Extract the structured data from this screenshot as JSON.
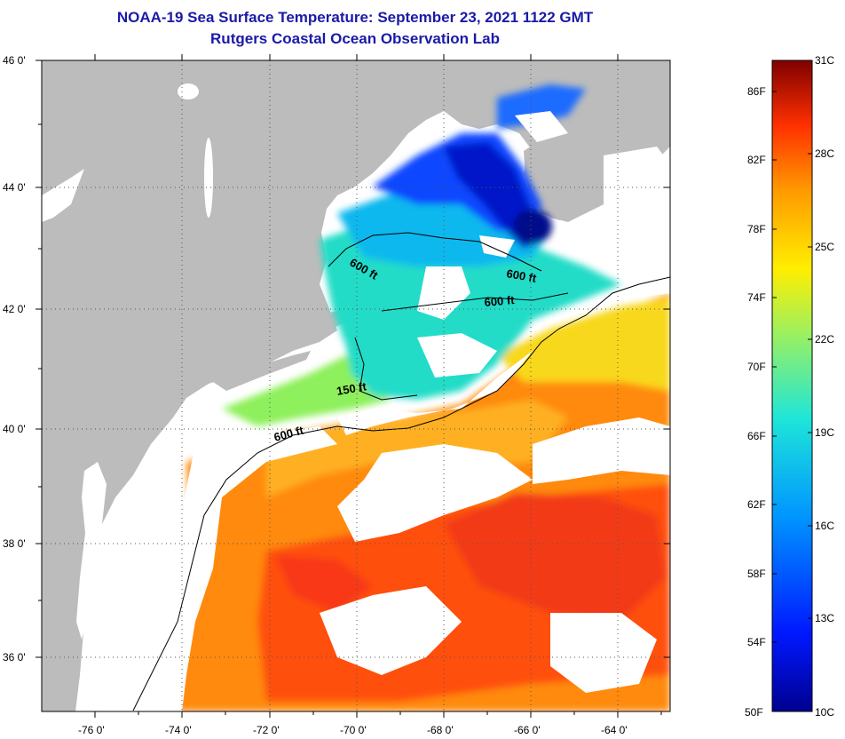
{
  "header": {
    "title": "NOAA-19 Sea Surface Temperature:  September 23, 2021 1122 GMT",
    "subtitle": "Rutgers Coastal Ocean Observation Lab"
  },
  "map": {
    "lat_ticks": [
      "46 0'",
      "44 0'",
      "42 0'",
      "40 0'",
      "38 0'",
      "36 0'"
    ],
    "lon_ticks": [
      "-76 0'",
      "-74 0'",
      "-72 0'",
      "-70 0'",
      "-68 0'",
      "-66 0'",
      "-64 0'"
    ],
    "contour_labels": [
      "600 ft",
      "600 ft",
      "600 ft",
      "150 ft",
      "600 ft"
    ]
  },
  "colorbar": {
    "fahrenheit": [
      "86F",
      "82F",
      "78F",
      "74F",
      "70F",
      "66F",
      "62F",
      "58F",
      "54F",
      "50F"
    ],
    "celsius": [
      "31C",
      "28C",
      "25C",
      "22C",
      "19C",
      "16C",
      "13C",
      "10C"
    ]
  },
  "colors": {
    "land": "#bcbcbc",
    "water_cloud": "#ffffff",
    "title": "#1a1aa8"
  }
}
